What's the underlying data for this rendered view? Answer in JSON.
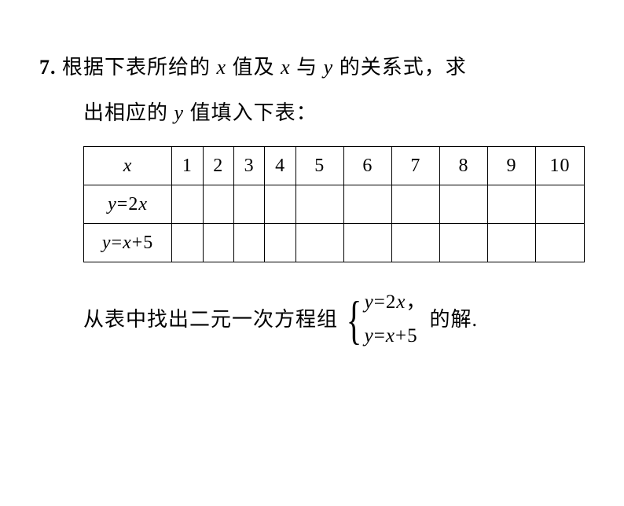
{
  "problem": {
    "number": "7.",
    "text1_part1": "根据下表所给的 ",
    "text1_part2": " 值及 ",
    "text1_part3": " 与 ",
    "text1_part4": " 的关系式，求",
    "text2_part1": "出相应的 ",
    "text2_part2": " 值填入下表：",
    "x_var": "x",
    "y_var": "y"
  },
  "table": {
    "row1_label": "x",
    "row2_label_y": "y",
    "row2_label_eq": "=",
    "row2_label_coef": "2",
    "row2_label_x": "x",
    "row3_label_y": "y",
    "row3_label_eq": "=",
    "row3_label_x": "x",
    "row3_label_plus": "+",
    "row3_label_const": "5",
    "headers": {
      "c1": "1",
      "c2": "2",
      "c3": "3",
      "c4": "4",
      "c5": "5",
      "c6": "6",
      "c7": "7",
      "c8": "8",
      "c9": "9",
      "c10": "10"
    }
  },
  "footer": {
    "text1": "从表中找出二元一次方程组",
    "eq1_y": "y",
    "eq1_eq": "=",
    "eq1_coef": "2",
    "eq1_x": "x",
    "eq1_comma": "，",
    "eq2_y": "y",
    "eq2_eq": "=",
    "eq2_x": "x",
    "eq2_plus": "+",
    "eq2_const": "5",
    "text2": "的解."
  }
}
